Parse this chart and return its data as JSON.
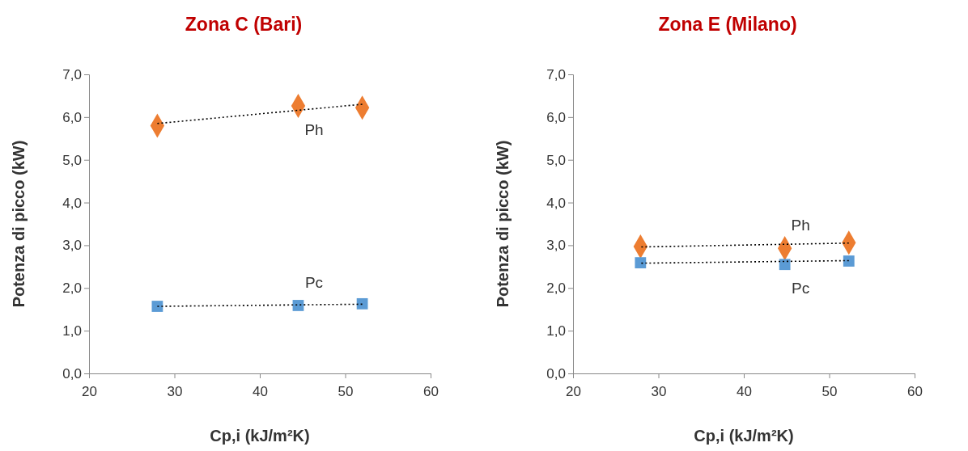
{
  "chart_data": [
    {
      "type": "scatter",
      "title": "Zona C (Bari)",
      "xlabel": "Cp,i  (kJ/m²K)",
      "ylabel": "Potenza di picco (kW)",
      "xlim": [
        20,
        60
      ],
      "xticks": [
        20,
        30,
        40,
        50,
        60
      ],
      "ylim": [
        0,
        7
      ],
      "yticks": [
        {
          "value": 0,
          "label": "0,0"
        },
        {
          "value": 1,
          "label": "1,0"
        },
        {
          "value": 2,
          "label": "2,0"
        },
        {
          "value": 3,
          "label": "3,0"
        },
        {
          "value": 4,
          "label": "4,0"
        },
        {
          "value": 5,
          "label": "5,0"
        },
        {
          "value": 6,
          "label": "6,0"
        },
        {
          "value": 7,
          "label": "7,0"
        }
      ],
      "grid": false,
      "series": [
        {
          "type": "line",
          "x": [
            28,
            52
          ],
          "values": [
            5.85,
            6.3
          ],
          "color": "#000000",
          "line_style": "dotted",
          "marker": "none"
        },
        {
          "type": "line",
          "x": [
            28,
            52
          ],
          "values": [
            1.57,
            1.62
          ],
          "color": "#000000",
          "line_style": "dotted",
          "marker": "none"
        },
        {
          "name": "Ph",
          "x": [
            28,
            44.5,
            52
          ],
          "values": [
            5.8,
            6.26,
            6.22
          ],
          "color": "#ed7d31",
          "marker": "diamond"
        },
        {
          "name": "Pc",
          "x": [
            28,
            44.5,
            52
          ],
          "values": [
            1.57,
            1.59,
            1.63
          ],
          "color": "#5b9bd5",
          "marker": "square"
        }
      ]
    },
    {
      "type": "scatter",
      "title": "Zona E (Milano)",
      "xlabel": "Cp,i  (kJ/m²K)",
      "ylabel": "Potenza di picco (kW)",
      "xlim": [
        20,
        60
      ],
      "xticks": [
        20,
        30,
        40,
        50,
        60
      ],
      "ylim": [
        0,
        7
      ],
      "yticks": [
        {
          "value": 0,
          "label": "0,0"
        },
        {
          "value": 1,
          "label": "1,0"
        },
        {
          "value": 2,
          "label": "2,0"
        },
        {
          "value": 3,
          "label": "3,0"
        },
        {
          "value": 4,
          "label": "4,0"
        },
        {
          "value": 5,
          "label": "5,0"
        },
        {
          "value": 6,
          "label": "6,0"
        },
        {
          "value": 7,
          "label": "7,0"
        }
      ],
      "grid": false,
      "series": [
        {
          "type": "line",
          "x": [
            28,
            52.3
          ],
          "values": [
            2.96,
            3.05
          ],
          "color": "#000000",
          "line_style": "dotted",
          "marker": "none"
        },
        {
          "type": "line",
          "x": [
            28,
            52.3
          ],
          "values": [
            2.58,
            2.64
          ],
          "color": "#000000",
          "line_style": "dotted",
          "marker": "none"
        },
        {
          "name": "Ph",
          "x": [
            27.9,
            44.8,
            52.3
          ],
          "values": [
            2.97,
            2.93,
            3.06
          ],
          "color": "#ed7d31",
          "marker": "diamond"
        },
        {
          "name": "Pc",
          "x": [
            27.9,
            44.8,
            52.3
          ],
          "values": [
            2.59,
            2.55,
            2.63
          ],
          "color": "#5b9bd5",
          "marker": "square"
        }
      ]
    }
  ]
}
